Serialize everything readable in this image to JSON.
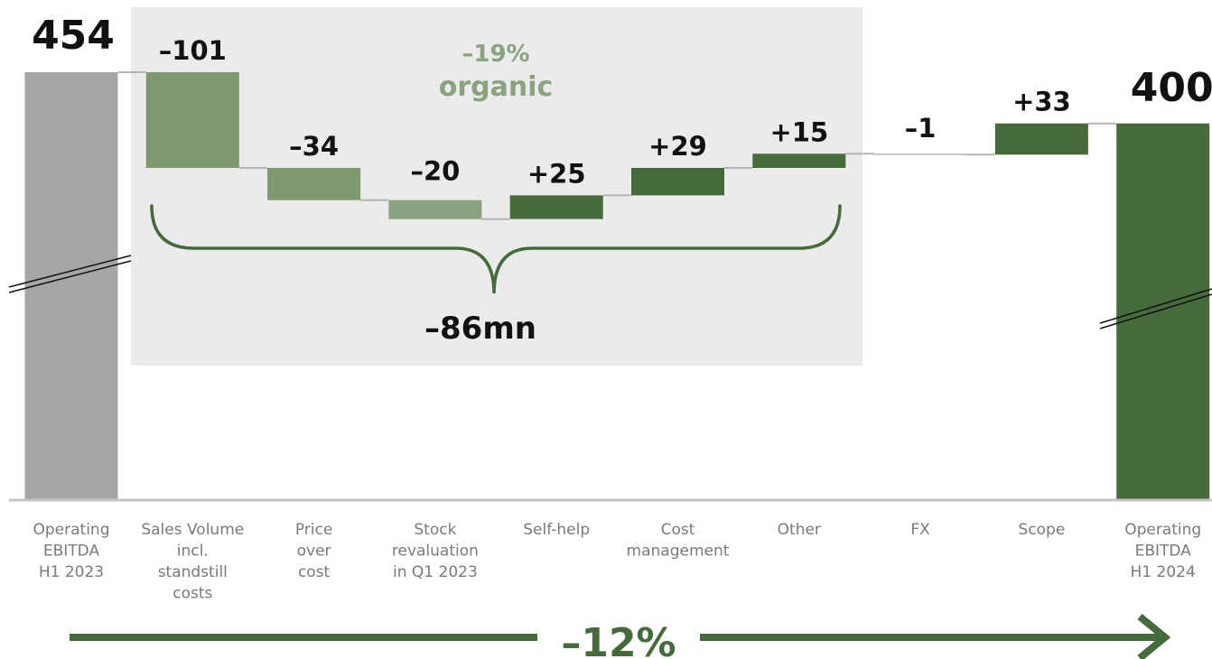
{
  "chart_data": {
    "type": "bar",
    "subtype": "waterfall",
    "categories": [
      "Operating EBITDA H1 2023",
      "Sales Volume incl. standstill costs",
      "Price over cost",
      "Stock revaluation in Q1 2023",
      "Self-help",
      "Cost management",
      "Other",
      "FX",
      "Scope",
      "Operating EBITDA H1 2024"
    ],
    "category_lines": [
      [
        "Operating",
        "EBITDA",
        "H1 2023"
      ],
      [
        "Sales Volume",
        "incl.",
        "standstill",
        "costs"
      ],
      [
        "Price",
        "over",
        "cost"
      ],
      [
        "Stock",
        "revaluation",
        "in Q1 2023"
      ],
      [
        "Self-help"
      ],
      [
        "Cost",
        "management"
      ],
      [
        "Other"
      ],
      [
        "FX"
      ],
      [
        "Scope"
      ],
      [
        "Operating",
        "EBITDA",
        "H1 2024"
      ]
    ],
    "values": [
      454,
      -101,
      -34,
      -20,
      25,
      29,
      15,
      -1,
      33,
      400
    ],
    "value_labels": [
      "454",
      "–101",
      "–34",
      "–20",
      "+25",
      "+29",
      "+15",
      "–1",
      "+33",
      "400"
    ],
    "bar_kinds": [
      "total",
      "delta",
      "delta",
      "delta",
      "delta",
      "delta",
      "delta",
      "delta",
      "delta",
      "total"
    ],
    "y_axis_broken": true,
    "colors": {
      "start_total": "#a6a6a6",
      "end_total": "#466a3b",
      "negative_organic": "#7d9970",
      "negative_organic_light": "#8aa27f",
      "positive": "#466a3b",
      "organic_box": "#ebebeb",
      "connector": "#b4b4b4",
      "axis": "#c4c4c4",
      "brace": "#466a3b"
    },
    "organic_group": {
      "label_pct": "–19%",
      "label_word": "organic",
      "bracket_total": "–86mn"
    },
    "overall_change": "–12%"
  }
}
